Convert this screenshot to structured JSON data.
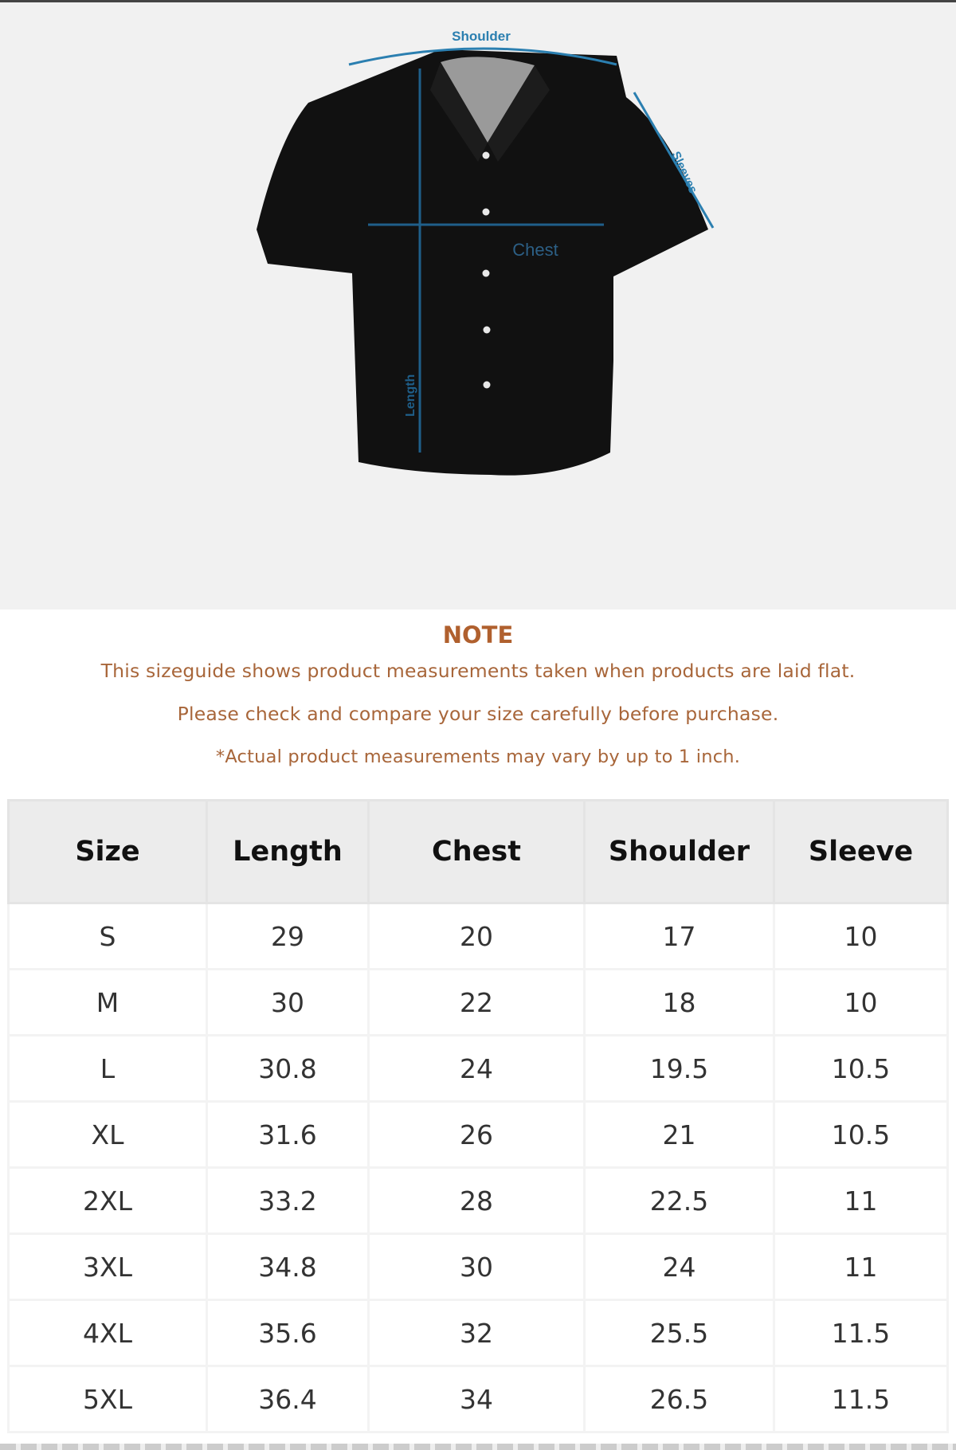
{
  "diagram": {
    "labels": {
      "shoulder": "Shoulder",
      "sleeves": "Sleeves",
      "chest": "Chest",
      "length": "Length"
    },
    "colors": {
      "measure_line": "#2b7fb0",
      "shirt": "#111111",
      "background": "#f1f1f1"
    }
  },
  "note": {
    "title": "NOTE",
    "lines": [
      "This sizeguide shows product measurements taken when products are laid flat.",
      "Please check and compare your size carefully before purchase.",
      "*Actual product measurements may vary by up to 1 inch."
    ],
    "color": "#a8663a"
  },
  "table": {
    "headers": [
      "Size",
      "Length",
      "Chest",
      "Shoulder",
      "Sleeve"
    ],
    "rows": [
      [
        "S",
        "29",
        "20",
        "17",
        "10"
      ],
      [
        "M",
        "30",
        "22",
        "18",
        "10"
      ],
      [
        "L",
        "30.8",
        "24",
        "19.5",
        "10.5"
      ],
      [
        "XL",
        "31.6",
        "26",
        "21",
        "10.5"
      ],
      [
        "2XL",
        "33.2",
        "28",
        "22.5",
        "11"
      ],
      [
        "3XL",
        "34.8",
        "30",
        "24",
        "11"
      ],
      [
        "4XL",
        "35.6",
        "32",
        "25.5",
        "11.5"
      ],
      [
        "5XL",
        "36.4",
        "34",
        "26.5",
        "11.5"
      ]
    ]
  }
}
